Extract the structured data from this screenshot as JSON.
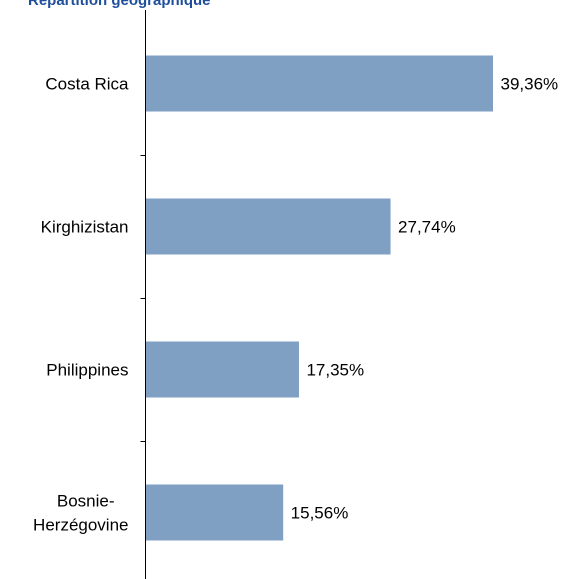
{
  "chart_data": {
    "type": "bar",
    "orientation": "horizontal",
    "title": "Répartition géographique",
    "categories": [
      "Costa Rica",
      "Kirghizistan",
      "Philippines",
      "Bosnie-Herzégovine"
    ],
    "values": [
      39.36,
      27.74,
      17.35,
      15.56
    ],
    "value_labels": [
      "39,36%",
      "27,74%",
      "17,35%",
      "15,56%"
    ],
    "xlabel": "",
    "ylabel": "",
    "xlim": [
      0,
      45
    ],
    "grid": false,
    "legend": "none",
    "colors": {
      "bar": "#7f9fc3",
      "axis": "#000000",
      "title": "#1f4e9a"
    }
  }
}
